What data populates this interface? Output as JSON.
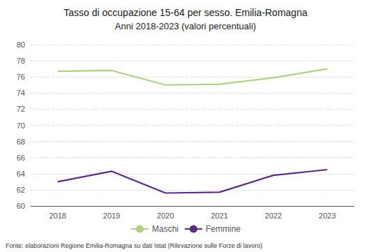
{
  "chart_data": {
    "type": "line",
    "title": "Tasso di occupazione 15-64 per sesso. Emilia-Romagna",
    "subtitle": "Anni 2018-2023 (valori percentuali)",
    "source": "Fonte: elaborazioni Regione Emilia-Romagna su dati Istat (Rilevazione sulle Forze di lavoro)",
    "x": [
      2018,
      2019,
      2020,
      2021,
      2022,
      2023
    ],
    "xlim": [
      2017.5,
      2023.5
    ],
    "xticks": [
      2018,
      2019,
      2020,
      2021,
      2022,
      2023
    ],
    "series": [
      {
        "name": "Maschi",
        "color": "#b2d180",
        "values": [
          76.7,
          76.8,
          75.0,
          75.1,
          75.9,
          77.0
        ]
      },
      {
        "name": "Femmine",
        "color": "#5b2d82",
        "values": [
          63.0,
          64.3,
          61.6,
          61.7,
          63.8,
          64.5
        ]
      }
    ],
    "ylim": [
      60,
      80
    ],
    "yticks": [
      60,
      62,
      64,
      66,
      68,
      70,
      72,
      74,
      76,
      78,
      80
    ],
    "grid": true,
    "legend": "bottom"
  }
}
